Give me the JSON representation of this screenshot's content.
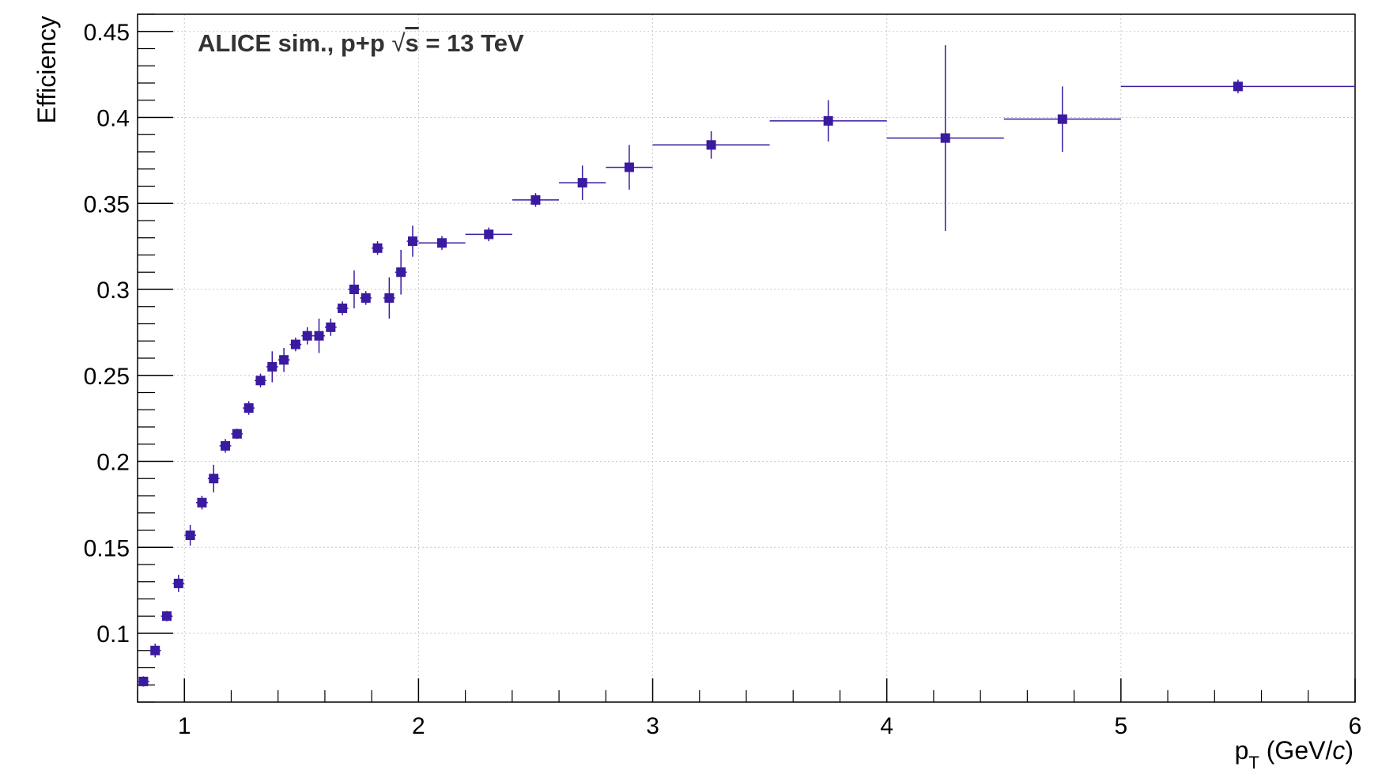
{
  "chart_data": {
    "type": "scatter",
    "annotation": {
      "prefix": "ALICE sim., p+p  ",
      "sqrt_symbol": "√",
      "sqrt_arg": "s",
      "suffix": " = 13 TeV"
    },
    "xlabel": {
      "main": "p",
      "sub": "T",
      "units_open": " (GeV/",
      "units_var": "c",
      "units_close": ")"
    },
    "ylabel": "Efficiency",
    "xlim": [
      0.8,
      6.0
    ],
    "ylim": [
      0.06,
      0.46
    ],
    "grid": true,
    "x_ticks": [
      "1",
      "2",
      "3",
      "4",
      "5",
      "6"
    ],
    "y_ticks": [
      "0.1",
      "0.15",
      "0.2",
      "0.25",
      "0.3",
      "0.35",
      "0.4",
      "0.45"
    ],
    "marker_color": "#3a1aa0",
    "series": [
      {
        "x": [
          0.825,
          0.875,
          0.925,
          0.975,
          1.025,
          1.075,
          1.125,
          1.175,
          1.225,
          1.275,
          1.325,
          1.375,
          1.425,
          1.475,
          1.525,
          1.575,
          1.625,
          1.675,
          1.725,
          1.775,
          1.825,
          1.875,
          1.925,
          1.975,
          2.1,
          2.3,
          2.5,
          2.7,
          2.9,
          3.25,
          3.75,
          4.25,
          4.75,
          5.5
        ],
        "xerr": [
          0.025,
          0.025,
          0.025,
          0.025,
          0.025,
          0.025,
          0.025,
          0.025,
          0.025,
          0.025,
          0.025,
          0.025,
          0.025,
          0.025,
          0.025,
          0.025,
          0.025,
          0.025,
          0.025,
          0.025,
          0.025,
          0.025,
          0.025,
          0.025,
          0.1,
          0.1,
          0.1,
          0.1,
          0.1,
          0.25,
          0.25,
          0.25,
          0.25,
          0.5
        ],
        "y": [
          0.072,
          0.09,
          0.11,
          0.129,
          0.157,
          0.176,
          0.19,
          0.209,
          0.216,
          0.231,
          0.247,
          0.255,
          0.259,
          0.268,
          0.273,
          0.273,
          0.278,
          0.289,
          0.3,
          0.295,
          0.324,
          0.295,
          0.31,
          0.328,
          0.327,
          0.332,
          0.352,
          0.362,
          0.371,
          0.384,
          0.398,
          0.388,
          0.399,
          0.418
        ],
        "yerr": [
          0.003,
          0.004,
          0.003,
          0.005,
          0.006,
          0.004,
          0.008,
          0.004,
          0.003,
          0.004,
          0.004,
          0.009,
          0.007,
          0.004,
          0.005,
          0.01,
          0.005,
          0.004,
          0.011,
          0.004,
          0.004,
          0.012,
          0.013,
          0.009,
          0.004,
          0.004,
          0.004,
          0.01,
          0.013,
          0.008,
          0.012,
          0.054,
          0.019,
          0.004
        ]
      }
    ]
  }
}
